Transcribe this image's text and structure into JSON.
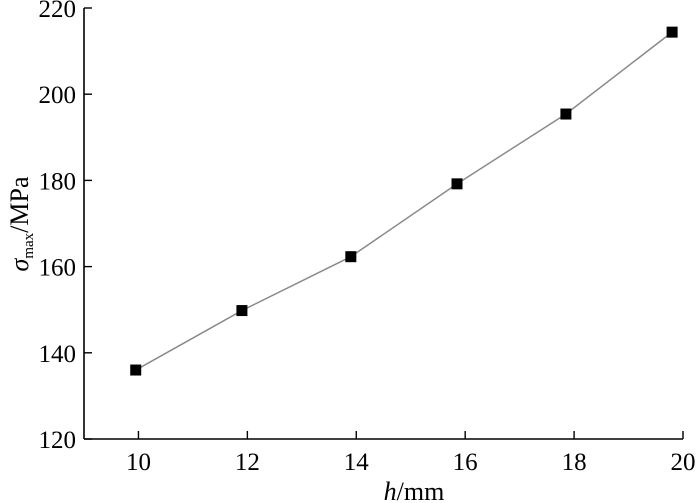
{
  "chart_data": {
    "type": "line",
    "title": "",
    "xlabel": {
      "italic": "h",
      "rest": "/mm"
    },
    "ylabel": {
      "symbol": "σ",
      "subscript": "max",
      "rest": "/MPa"
    },
    "xlim": [
      9,
      20
    ],
    "ylim": [
      120,
      220
    ],
    "xticks": [
      10,
      12,
      14,
      16,
      18,
      20
    ],
    "yticks": [
      120,
      140,
      160,
      180,
      200,
      220
    ],
    "grid": false,
    "legend": "none",
    "colors": {
      "line": "#8a8a8a",
      "marker": "#000000",
      "axis": "#000000"
    },
    "series": [
      {
        "x": [
          9.95,
          11.9,
          13.9,
          15.85,
          17.85,
          19.8
        ],
        "y": [
          136,
          149.8,
          162.3,
          179.2,
          195.4,
          214.4
        ]
      }
    ]
  }
}
